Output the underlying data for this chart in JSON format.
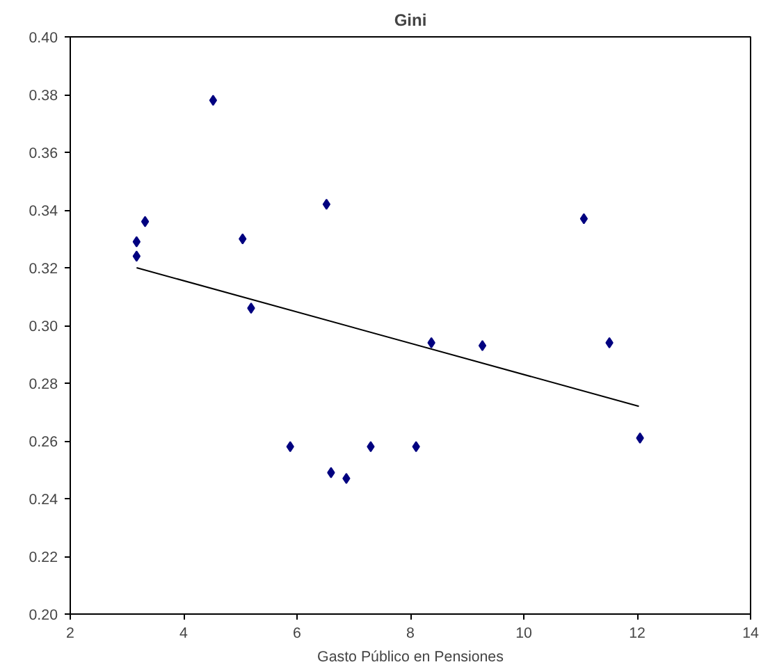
{
  "chart_data": {
    "type": "scatter",
    "title": "Gini",
    "xlabel": "Gasto Público en Pensiones",
    "xlim": [
      2,
      14
    ],
    "ylim": [
      0.2,
      0.4
    ],
    "xticks": [
      2,
      4,
      6,
      8,
      10,
      12,
      14
    ],
    "yticks": [
      {
        "value": 0.2,
        "label": "0.20"
      },
      {
        "value": 0.22,
        "label": "0.22"
      },
      {
        "value": 0.24,
        "label": "0.24"
      },
      {
        "value": 0.26,
        "label": "0.26"
      },
      {
        "value": 0.28,
        "label": "0.28"
      },
      {
        "value": 0.3,
        "label": "0.30"
      },
      {
        "value": 0.32,
        "label": "0.32"
      },
      {
        "value": 0.34,
        "label": "0.34"
      },
      {
        "value": 0.36,
        "label": "0.36"
      },
      {
        "value": 0.38,
        "label": "0.38"
      },
      {
        "value": 0.4,
        "label": "0.40"
      }
    ],
    "grid": false,
    "marker": "diamond",
    "series": [
      {
        "color": "#000080",
        "x": [
          3.17,
          3.17,
          3.32,
          4.52,
          5.04,
          5.19,
          5.88,
          6.52,
          6.6,
          6.87,
          7.3,
          8.1,
          8.37,
          9.27,
          11.06,
          11.51,
          12.05
        ],
        "values": [
          0.329,
          0.324,
          0.336,
          0.378,
          0.33,
          0.306,
          0.258,
          0.342,
          0.249,
          0.247,
          0.258,
          0.258,
          0.294,
          0.293,
          0.337,
          0.294,
          0.261
        ]
      },
      {
        "type": "line",
        "color": "#000000",
        "marker": "none",
        "x": [
          3.17,
          12.03
        ],
        "values": [
          0.32,
          0.272
        ]
      }
    ]
  }
}
